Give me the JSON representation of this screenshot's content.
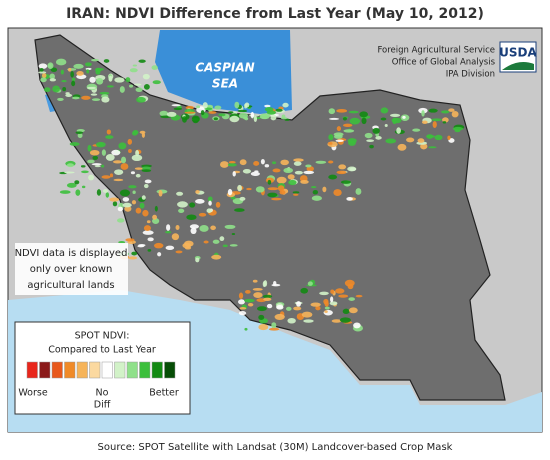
{
  "header": {
    "title": "IRAN: NDVI Difference from Last Year (May 10, 2012)"
  },
  "map": {
    "sea_label": [
      "CASPIAN",
      "SEA"
    ]
  },
  "agency": {
    "lines": [
      "Foreign Agricultural Service",
      "Office of Global Analysis",
      "IPA Division"
    ],
    "logo": "USDA"
  },
  "note": {
    "lines": [
      "NDVI data is displayed",
      "only over known",
      "agricultural lands"
    ]
  },
  "legend": {
    "title": [
      "SPOT NDVI:",
      "Compared to Last Year"
    ],
    "colors": [
      "#e8261c",
      "#8b1a1a",
      "#e8581c",
      "#f08a28",
      "#f6b45a",
      "#fbd9a0",
      "#ffffff",
      "#d2f2c8",
      "#8fe08a",
      "#3cbf3c",
      "#128a12",
      "#064d06"
    ],
    "worse": "Worse",
    "nodiff": [
      "No",
      "Diff"
    ],
    "better": "Better"
  },
  "footer": {
    "source": "Source: SPOT Satellite with Landsat (30M) Landcover-based Crop Mask"
  }
}
